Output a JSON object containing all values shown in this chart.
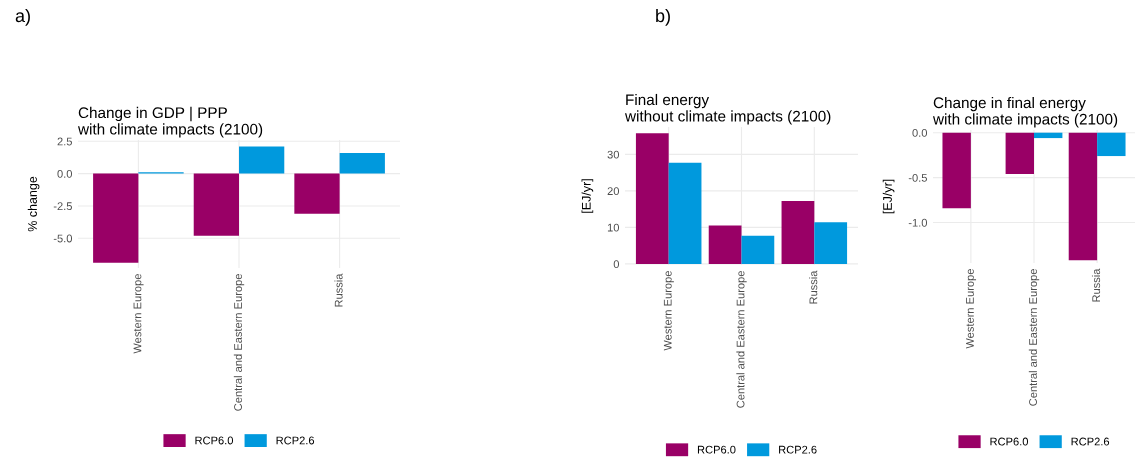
{
  "chart_data": [
    {
      "type": "bar",
      "title": "Change in GDP | PPP\nwith climate impacts (2100)",
      "ylabel": "% change",
      "annotations": [
        "a)"
      ],
      "categories": [
        "Western Europe",
        "Central and Eastern Europe",
        "Russia"
      ],
      "series": [
        {
          "name": "RCP6.0",
          "color": "#990066",
          "values": [
            -6.9,
            -4.8,
            -3.1
          ]
        },
        {
          "name": "RCP2.6",
          "color": "#0099dd",
          "values": [
            0.1,
            2.1,
            1.6
          ]
        }
      ],
      "ylim": [
        -7.3,
        2.6
      ],
      "yticks": [
        {
          "value": 2.5,
          "label": "2.5"
        },
        {
          "value": 0,
          "label": "0.0"
        },
        {
          "value": -2.5,
          "label": "-2.5"
        },
        {
          "value": -5,
          "label": "-5.0"
        }
      ],
      "grid": true,
      "legend": "bottom"
    },
    {
      "type": "bar",
      "title": "Final energy\nwithout climate impacts (2100)",
      "ylabel": "[EJ/yr]",
      "annotations": [
        "b)"
      ],
      "categories": [
        "Western Europe",
        "Central and Eastern Europe",
        "Russia"
      ],
      "series": [
        {
          "name": "RCP6.0",
          "color": "#990066",
          "values": [
            35.8,
            10.5,
            17.2
          ]
        },
        {
          "name": "RCP2.6",
          "color": "#0099dd",
          "values": [
            27.7,
            7.7,
            11.4
          ]
        }
      ],
      "ylim": [
        -0.3,
        37.5
      ],
      "yticks": [
        0,
        10,
        20,
        30
      ],
      "grid": true,
      "legend": "bottom"
    },
    {
      "type": "bar",
      "title": "Change in final energy\nwith climate impacts (2100)",
      "ylabel": "[EJ/yr]",
      "categories": [
        "Western Europe",
        "Central and Eastern Europe",
        "Russia"
      ],
      "series": [
        {
          "name": "RCP6.0",
          "color": "#990066",
          "values": [
            -0.84,
            -0.46,
            -1.42
          ]
        },
        {
          "name": "RCP2.6",
          "color": "#0099dd",
          "values": [
            null,
            -0.06,
            -0.26
          ]
        }
      ],
      "ylim": [
        -1.45,
        0.03
      ],
      "yticks": [
        {
          "value": 0,
          "label": "0.0"
        },
        {
          "value": -0.5,
          "label": "-0.5"
        },
        {
          "value": -1,
          "label": "-1.0"
        }
      ],
      "grid": true,
      "legend": "bottom"
    }
  ]
}
